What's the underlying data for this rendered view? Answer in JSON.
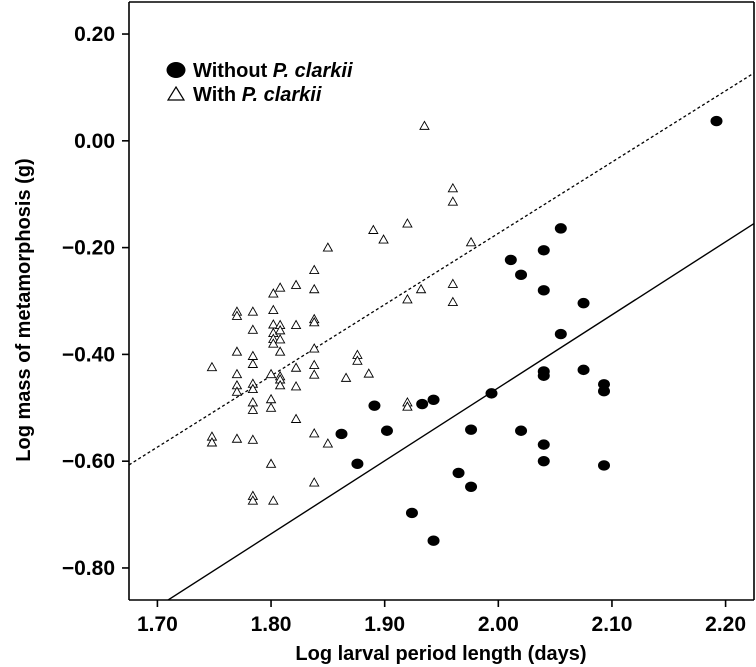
{
  "chart_data": {
    "type": "scatter",
    "title": "",
    "xlabel": "Log larval period length (days)",
    "ylabel": "Log mass of metamorphosis (g)",
    "xlim": [
      1.675,
      2.225
    ],
    "ylim": [
      -0.86,
      0.26
    ],
    "x_ticks": [
      1.7,
      1.8,
      1.9,
      2.0,
      2.1,
      2.2
    ],
    "x_tick_labels": [
      "1.70",
      "1.80",
      "1.90",
      "2.00",
      "2.10",
      "2.20"
    ],
    "y_ticks": [
      0.2,
      0.0,
      -0.2,
      -0.4,
      -0.6,
      -0.8
    ],
    "y_tick_labels": [
      "0.20",
      "0.00",
      "−0.20",
      "−0.40",
      "−0.60",
      "−0.80"
    ],
    "grid": false,
    "legend": {
      "placement": "top-left",
      "entries": [
        {
          "marker": "filled-circle",
          "prefix": "Without ",
          "species": "P. clarkii"
        },
        {
          "marker": "open-triangle",
          "prefix": "With ",
          "species": "P. clarkii"
        }
      ]
    },
    "series": [
      {
        "name": "Without P. clarkii",
        "marker": "filled-circle",
        "color": "#000000",
        "points": [
          [
            1.862,
            -0.549
          ],
          [
            1.876,
            -0.605
          ],
          [
            1.891,
            -0.496
          ],
          [
            1.902,
            -0.543
          ],
          [
            1.924,
            -0.697
          ],
          [
            1.933,
            -0.493
          ],
          [
            1.943,
            -0.485
          ],
          [
            1.943,
            -0.749
          ],
          [
            1.965,
            -0.622
          ],
          [
            1.976,
            -0.541
          ],
          [
            1.976,
            -0.648
          ],
          [
            1.994,
            -0.473
          ],
          [
            2.011,
            -0.223
          ],
          [
            2.02,
            -0.251
          ],
          [
            2.02,
            -0.543
          ],
          [
            2.04,
            -0.205
          ],
          [
            2.04,
            -0.28
          ],
          [
            2.04,
            -0.432
          ],
          [
            2.04,
            -0.44
          ],
          [
            2.04,
            -0.569
          ],
          [
            2.04,
            -0.6
          ],
          [
            2.055,
            -0.164
          ],
          [
            2.055,
            -0.362
          ],
          [
            2.075,
            -0.304
          ],
          [
            2.075,
            -0.429
          ],
          [
            2.093,
            -0.456
          ],
          [
            2.093,
            -0.469
          ],
          [
            2.093,
            -0.608
          ],
          [
            2.192,
            0.037
          ]
        ],
        "trendline": {
          "style": "solid",
          "from": [
            1.675,
            -0.907
          ],
          "to": [
            2.225,
            -0.155
          ]
        }
      },
      {
        "name": "With P. clarkii",
        "marker": "open-triangle",
        "color": "#000000",
        "points": [
          [
            1.748,
            -0.424
          ],
          [
            1.748,
            -0.554
          ],
          [
            1.748,
            -0.565
          ],
          [
            1.77,
            -0.32
          ],
          [
            1.77,
            -0.328
          ],
          [
            1.77,
            -0.395
          ],
          [
            1.77,
            -0.437
          ],
          [
            1.77,
            -0.458
          ],
          [
            1.77,
            -0.47
          ],
          [
            1.77,
            -0.558
          ],
          [
            1.784,
            -0.32
          ],
          [
            1.784,
            -0.354
          ],
          [
            1.784,
            -0.403
          ],
          [
            1.784,
            -0.418
          ],
          [
            1.784,
            -0.455
          ],
          [
            1.784,
            -0.465
          ],
          [
            1.784,
            -0.49
          ],
          [
            1.784,
            -0.504
          ],
          [
            1.784,
            -0.56
          ],
          [
            1.784,
            -0.665
          ],
          [
            1.784,
            -0.674
          ],
          [
            1.8,
            -0.437
          ],
          [
            1.8,
            -0.484
          ],
          [
            1.8,
            -0.5
          ],
          [
            1.8,
            -0.605
          ],
          [
            1.802,
            -0.286
          ],
          [
            1.802,
            -0.317
          ],
          [
            1.802,
            -0.344
          ],
          [
            1.802,
            -0.36
          ],
          [
            1.802,
            -0.371
          ],
          [
            1.802,
            -0.38
          ],
          [
            1.802,
            -0.674
          ],
          [
            1.808,
            -0.275
          ],
          [
            1.808,
            -0.345
          ],
          [
            1.808,
            -0.355
          ],
          [
            1.808,
            -0.372
          ],
          [
            1.808,
            -0.395
          ],
          [
            1.808,
            -0.441
          ],
          [
            1.808,
            -0.447
          ],
          [
            1.808,
            -0.458
          ],
          [
            1.822,
            -0.27
          ],
          [
            1.822,
            -0.345
          ],
          [
            1.822,
            -0.425
          ],
          [
            1.822,
            -0.46
          ],
          [
            1.822,
            -0.521
          ],
          [
            1.838,
            -0.242
          ],
          [
            1.838,
            -0.278
          ],
          [
            1.838,
            -0.334
          ],
          [
            1.838,
            -0.34
          ],
          [
            1.838,
            -0.389
          ],
          [
            1.838,
            -0.42
          ],
          [
            1.838,
            -0.438
          ],
          [
            1.838,
            -0.548
          ],
          [
            1.838,
            -0.64
          ],
          [
            1.85,
            -0.2
          ],
          [
            1.85,
            -0.567
          ],
          [
            1.866,
            -0.444
          ],
          [
            1.876,
            -0.401
          ],
          [
            1.876,
            -0.412
          ],
          [
            1.886,
            -0.436
          ],
          [
            1.89,
            -0.167
          ],
          [
            1.899,
            -0.185
          ],
          [
            1.92,
            -0.155
          ],
          [
            1.92,
            -0.297
          ],
          [
            1.92,
            -0.49
          ],
          [
            1.92,
            -0.498
          ],
          [
            1.932,
            -0.278
          ],
          [
            1.935,
            0.028
          ],
          [
            1.96,
            -0.089
          ],
          [
            1.96,
            -0.114
          ],
          [
            1.96,
            -0.268
          ],
          [
            1.96,
            -0.302
          ],
          [
            1.976,
            -0.19
          ]
        ],
        "trendline": {
          "style": "dashed",
          "from": [
            1.675,
            -0.607
          ],
          "to": [
            2.225,
            0.127
          ]
        }
      }
    ]
  }
}
